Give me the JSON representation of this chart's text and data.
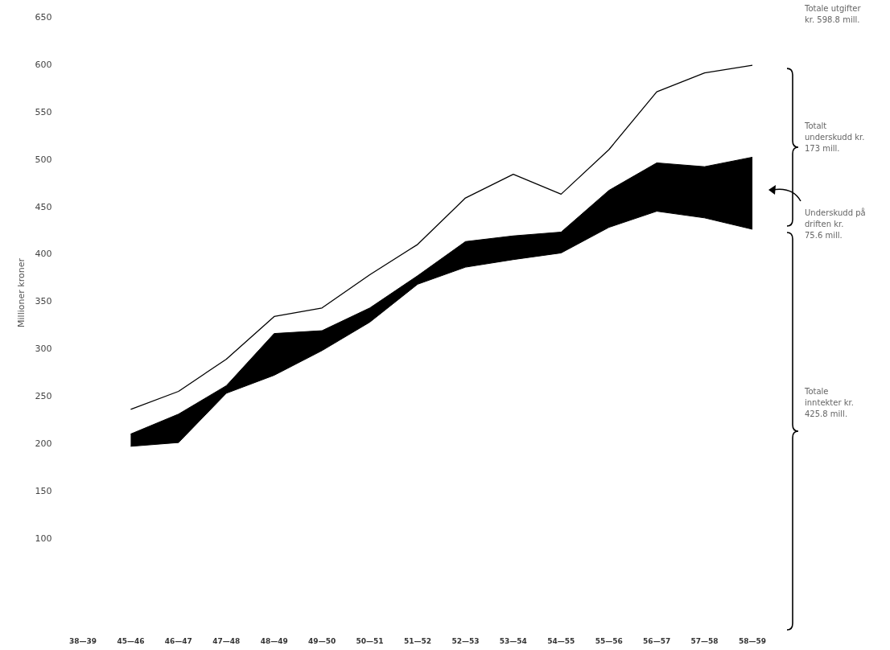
{
  "chart_data": {
    "type": "line",
    "ylabel": "Millioner kroner",
    "categories": [
      "38—39",
      "45—46",
      "46—47",
      "47—48",
      "48—49",
      "49—50",
      "50—51",
      "51—52",
      "52—53",
      "53—54",
      "54—55",
      "55—56",
      "56—57",
      "57—58",
      "58—59"
    ],
    "stacked": true,
    "series": [
      {
        "type": "area",
        "color": "#ffffff",
        "values": [
          null,
          197,
          201,
          253,
          272,
          298,
          328,
          368,
          386,
          394,
          401,
          428,
          445,
          438,
          426
        ]
      },
      {
        "type": "area",
        "color": "#000000",
        "values": [
          null,
          13,
          30,
          8,
          44,
          21,
          15,
          9,
          27,
          25,
          22,
          39,
          51,
          54,
          76
        ]
      },
      {
        "color": "#000000",
        "values": [
          null,
          236,
          255,
          289,
          334,
          343,
          378,
          410,
          459,
          484,
          463,
          510,
          571,
          591,
          599
        ]
      }
    ],
    "ylim": [
      0,
      650
    ],
    "yticks": [
      100,
      150,
      200,
      250,
      300,
      350,
      400,
      450,
      500,
      550,
      600,
      650
    ],
    "annotations": [
      "Totale utgifter kr. 598.8 mill.",
      "Totalt underskudd kr. 173 mill.",
      "Underskudd på driften kr. 75.6 mill.",
      "Totale inntekter kr. 425.8 mill."
    ]
  }
}
